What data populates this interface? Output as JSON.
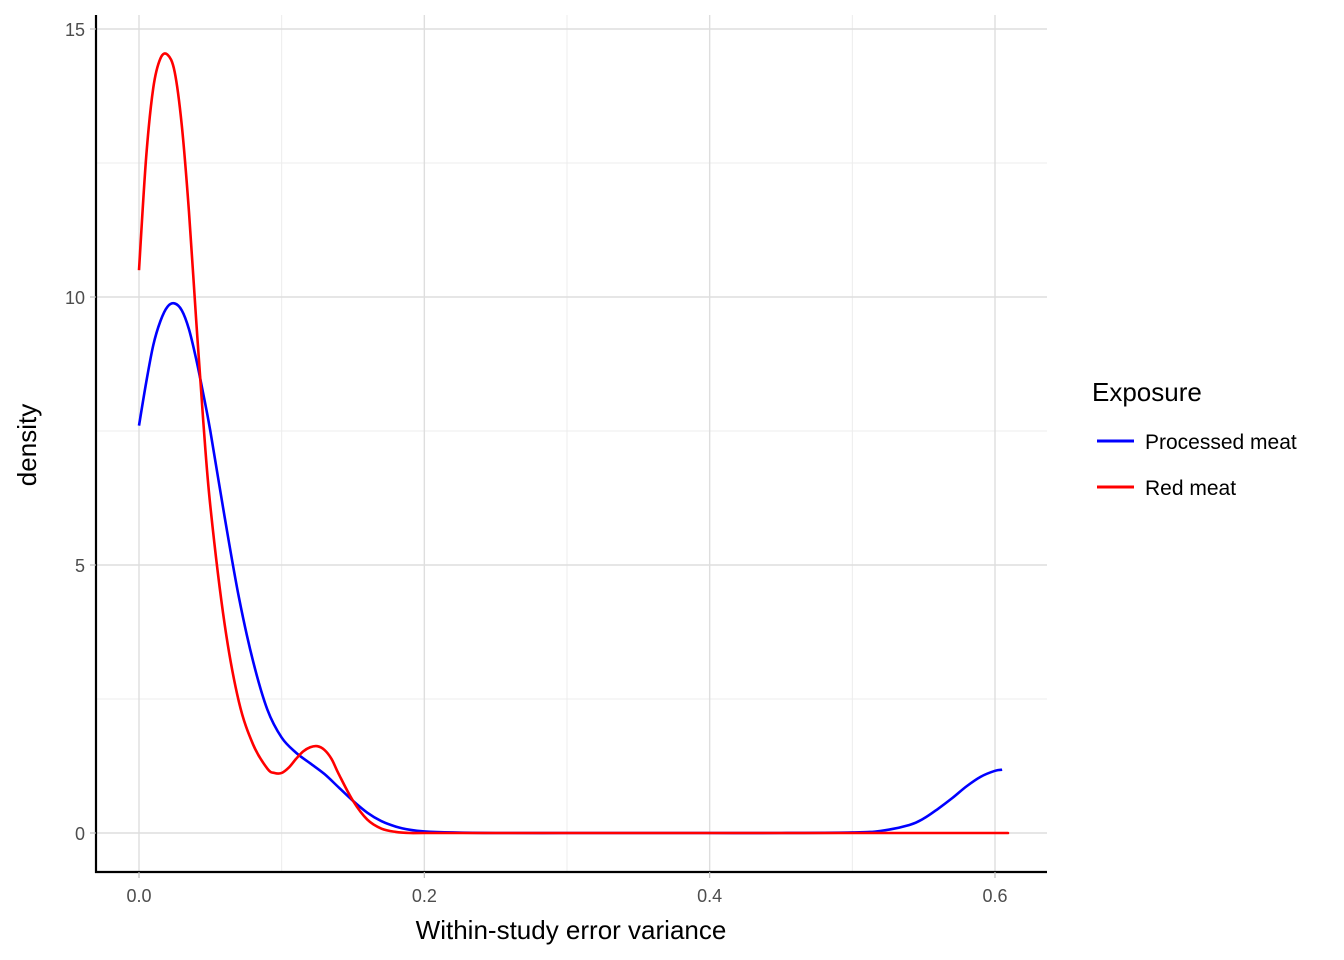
{
  "chart_data": {
    "type": "line",
    "title": "",
    "xlabel": "Within-study error variance",
    "ylabel": "density",
    "xlim": [
      -0.03,
      0.635
    ],
    "ylim": [
      -0.7,
      15.3
    ],
    "x_ticks": [
      0.0,
      0.2,
      0.4,
      0.6
    ],
    "x_tick_labels": [
      "0.0",
      "0.2",
      "0.4",
      "0.6"
    ],
    "x_minor_ticks": [
      0.1,
      0.3,
      0.5
    ],
    "y_ticks": [
      0,
      5,
      10,
      15
    ],
    "y_tick_labels": [
      "0",
      "5",
      "10",
      "15"
    ],
    "y_minor_ticks": [
      2.5,
      7.5,
      12.5
    ],
    "grid": true,
    "legend_position": "right",
    "legend_title": "Exposure",
    "series": [
      {
        "name": "Processed meat",
        "color": "#0000ff",
        "x": [
          0.0,
          0.005,
          0.01,
          0.015,
          0.02,
          0.025,
          0.03,
          0.035,
          0.04,
          0.045,
          0.05,
          0.06,
          0.07,
          0.08,
          0.09,
          0.1,
          0.11,
          0.12,
          0.13,
          0.14,
          0.15,
          0.16,
          0.17,
          0.18,
          0.19,
          0.2,
          0.22,
          0.25,
          0.3,
          0.35,
          0.4,
          0.45,
          0.5,
          0.52,
          0.54,
          0.55,
          0.56,
          0.57,
          0.58,
          0.59,
          0.6,
          0.605
        ],
        "y": [
          7.6,
          8.4,
          9.1,
          9.55,
          9.82,
          9.88,
          9.75,
          9.4,
          8.85,
          8.2,
          7.5,
          5.9,
          4.4,
          3.2,
          2.3,
          1.78,
          1.5,
          1.3,
          1.1,
          0.85,
          0.6,
          0.38,
          0.22,
          0.12,
          0.06,
          0.03,
          0.01,
          0.0,
          0.0,
          0.0,
          0.0,
          0.0,
          0.01,
          0.04,
          0.15,
          0.27,
          0.45,
          0.65,
          0.87,
          1.05,
          1.16,
          1.18
        ]
      },
      {
        "name": "Red meat",
        "color": "#ff0000",
        "x": [
          0.0,
          0.005,
          0.01,
          0.015,
          0.02,
          0.025,
          0.03,
          0.035,
          0.04,
          0.045,
          0.05,
          0.06,
          0.07,
          0.08,
          0.09,
          0.095,
          0.1,
          0.105,
          0.11,
          0.115,
          0.12,
          0.125,
          0.13,
          0.135,
          0.14,
          0.15,
          0.16,
          0.17,
          0.18,
          0.19,
          0.2,
          0.25,
          0.3,
          0.4,
          0.5,
          0.6,
          0.605
        ],
        "y": [
          10.5,
          12.6,
          13.9,
          14.45,
          14.52,
          14.2,
          13.2,
          11.6,
          9.6,
          7.7,
          6.1,
          3.9,
          2.45,
          1.65,
          1.2,
          1.12,
          1.12,
          1.22,
          1.38,
          1.52,
          1.6,
          1.62,
          1.55,
          1.38,
          1.1,
          0.6,
          0.25,
          0.08,
          0.02,
          0.0,
          0.0,
          0.0,
          0.0,
          0.0,
          0.0,
          0.0,
          0.0
        ]
      }
    ]
  }
}
